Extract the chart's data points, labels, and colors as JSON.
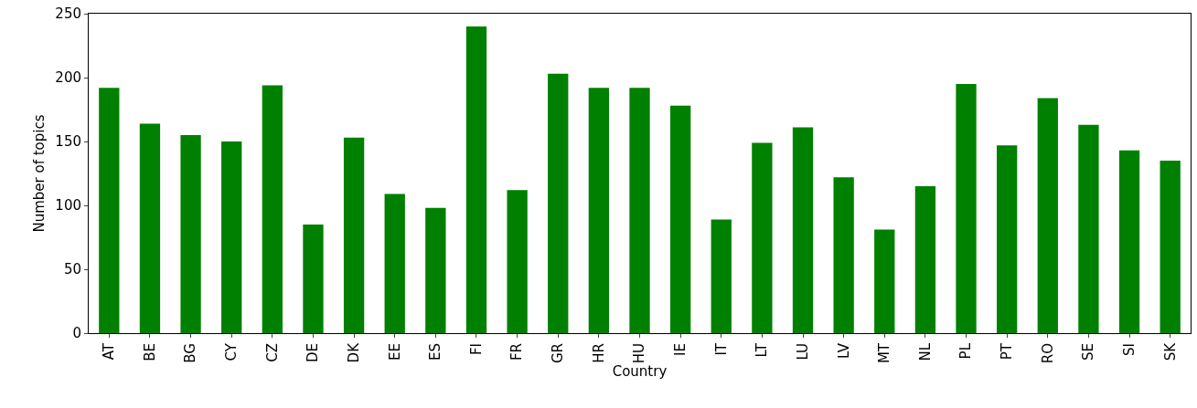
{
  "chart_data": {
    "type": "bar",
    "xlabel": "Country",
    "ylabel": "Number of topics",
    "categories": [
      "AT",
      "BE",
      "BG",
      "CY",
      "CZ",
      "DE",
      "DK",
      "EE",
      "ES",
      "FI",
      "FR",
      "GR",
      "HR",
      "HU",
      "IE",
      "IT",
      "LT",
      "LU",
      "LV",
      "MT",
      "NL",
      "PL",
      "PT",
      "RO",
      "SE",
      "SI",
      "SK"
    ],
    "values": [
      192,
      164,
      155,
      150,
      194,
      85,
      153,
      109,
      98,
      240,
      112,
      203,
      192,
      192,
      178,
      89,
      149,
      161,
      122,
      81,
      115,
      195,
      147,
      184,
      163,
      143,
      135
    ],
    "color": "#008000",
    "ylim": [
      0,
      250
    ],
    "yticks": [
      0,
      50,
      100,
      150,
      200,
      250
    ],
    "grid": false,
    "legend": false
  }
}
